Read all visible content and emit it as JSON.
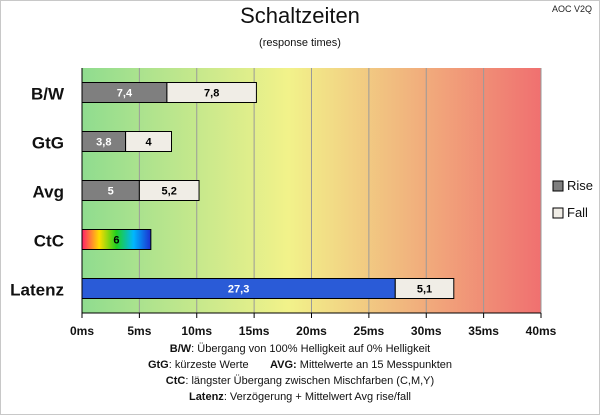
{
  "header": {
    "brand": "AOC V2Q",
    "title": "Schaltzeiten",
    "subtitle": "(response times)"
  },
  "legend": {
    "rise": "Rise",
    "fall": "Fall"
  },
  "footer": {
    "line1_key": "B/W",
    "line1_text": ":  Übergang von 100% Helligkeit auf 0% Helligkeit",
    "line2_key_a": "GtG",
    "line2_text_a": ": kürzeste  Werte",
    "line2_key_b": "AVG:",
    "line2_text_b": " Mittelwerte  an 15 Messpunkten",
    "line3_key": "CtC",
    "line3_text": ": längster Übergang  zwischen Mischfarben  (C,M,Y)",
    "line4_key": "Latenz",
    "line4_text": ": Verzögerung  + Mittelwert  Avg rise/fall"
  },
  "colors": {
    "rise": "#7f7f7f",
    "fall": "#f0ede6",
    "latency": "#2a5bd7",
    "gradient": [
      "#8fdc8f",
      "#f2f28a",
      "#f07070"
    ]
  },
  "chart_data": {
    "type": "bar",
    "orientation": "horizontal",
    "stacked": true,
    "categories": [
      "B/W",
      "GtG",
      "Avg",
      "CtC",
      "Latenz"
    ],
    "series": [
      {
        "name": "Rise",
        "values": [
          7.4,
          3.8,
          5,
          6,
          27.3
        ],
        "labels": [
          "7,4",
          "3,8",
          "5",
          "6",
          "27,3"
        ]
      },
      {
        "name": "Fall",
        "values": [
          7.8,
          4,
          5.2,
          null,
          5.1
        ],
        "labels": [
          "7,8",
          "4",
          "5,2",
          "",
          "5,1"
        ]
      }
    ],
    "xlim": [
      0,
      40
    ],
    "ticks": [
      0,
      5,
      10,
      15,
      20,
      25,
      30,
      35,
      40
    ],
    "tick_labels": [
      "0ms",
      "5ms",
      "10ms",
      "15ms",
      "20ms",
      "25ms",
      "30ms",
      "35ms",
      "40ms"
    ],
    "grid": true,
    "legend_position": "right"
  }
}
